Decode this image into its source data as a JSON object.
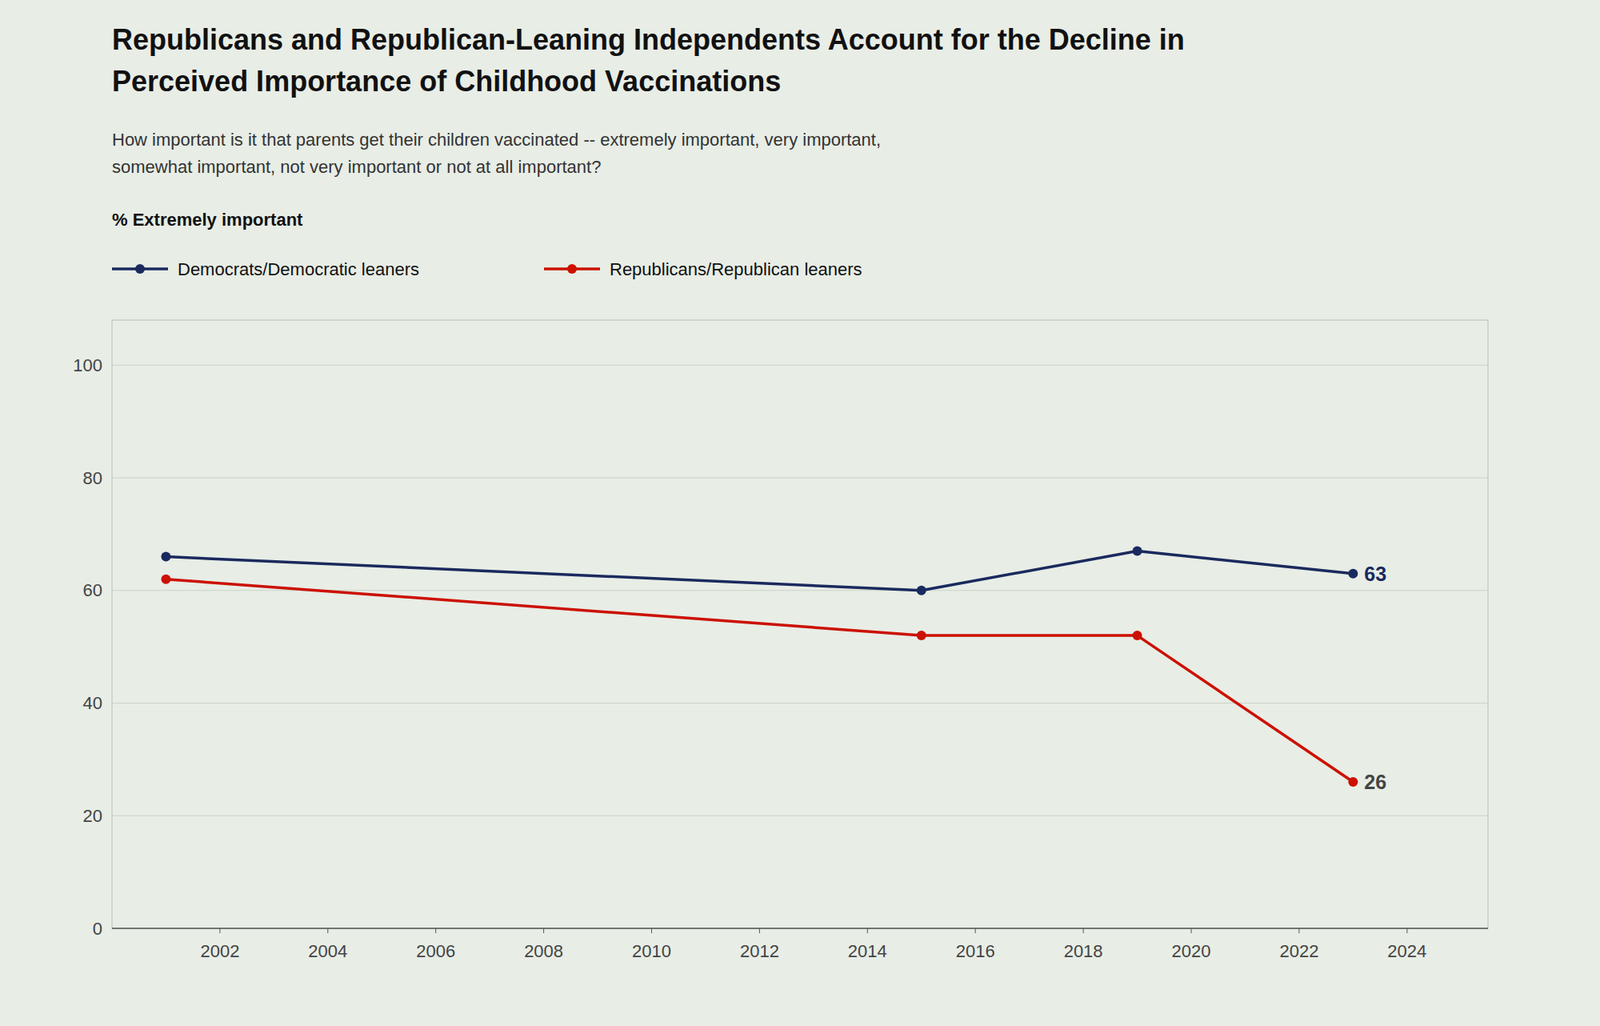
{
  "chart_data": {
    "type": "line",
    "title": [
      "Republicans and Republican-Leaning Independents Account for the Decline in",
      "Perceived Importance of Childhood Vaccinations"
    ],
    "subtitle": [
      "How important is it that parents get their children vaccinated -- extremely important, very important,",
      "somewhat important, not very important or not at all important?"
    ],
    "y_label": "% Extremely important",
    "x": [
      2001,
      2015,
      2019,
      2023
    ],
    "series": [
      {
        "name": "Democrats/Democratic leaners",
        "color": "#1a2a5e",
        "marker": "circle",
        "values": [
          66,
          60,
          67,
          63
        ]
      },
      {
        "name": "Republicans/Republican leaners",
        "color": "#cc1100",
        "marker": "circle",
        "values": [
          62,
          52,
          52,
          26
        ]
      }
    ],
    "annotations": [
      {
        "text": "63",
        "x": 2023,
        "y": 63,
        "color": "#1a2a5e"
      },
      {
        "text": "26",
        "x": 2023,
        "y": 26,
        "color": "#444444"
      }
    ],
    "xlim": [
      2000,
      2025.5
    ],
    "ylim": [
      0,
      108
    ],
    "xticks": [
      2002,
      2004,
      2006,
      2008,
      2010,
      2012,
      2014,
      2016,
      2018,
      2020,
      2022,
      2024
    ],
    "yticks": [
      0,
      20,
      40,
      60,
      80,
      100
    ],
    "grid": true,
    "legend": "top"
  }
}
